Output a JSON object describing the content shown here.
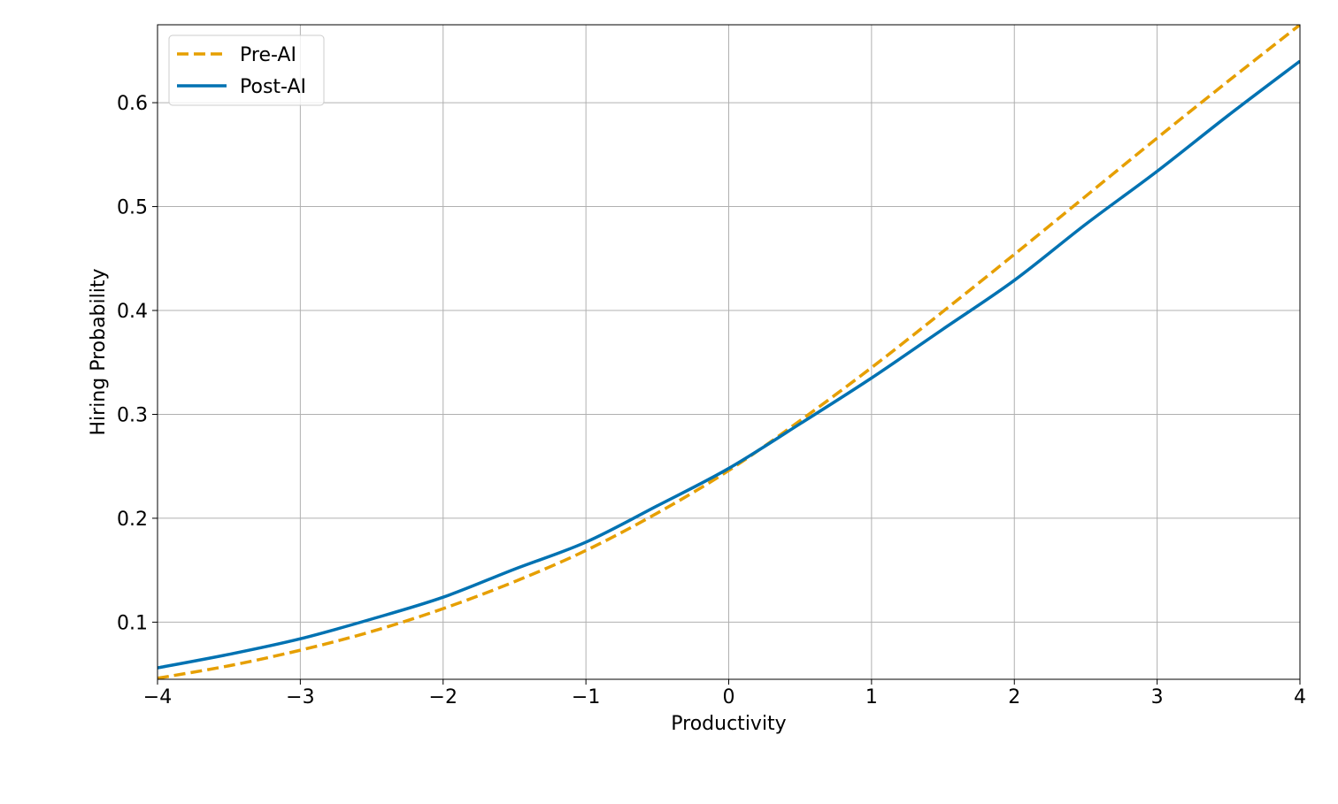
{
  "chart_data": {
    "type": "line",
    "xlabel": "Productivity",
    "ylabel": "Hiring Probability",
    "xlim": [
      -4,
      4
    ],
    "ylim": [
      0.045,
      0.675
    ],
    "x_ticks": [
      -4,
      -3,
      -2,
      -1,
      0,
      1,
      2,
      3,
      4
    ],
    "x_tick_labels": [
      "−4",
      "−3",
      "−2",
      "−1",
      "0",
      "1",
      "2",
      "3",
      "4"
    ],
    "y_ticks": [
      0.1,
      0.2,
      0.3,
      0.4,
      0.5,
      0.6
    ],
    "y_tick_labels": [
      "0.1",
      "0.2",
      "0.3",
      "0.4",
      "0.5",
      "0.6"
    ],
    "grid": true,
    "legend_position": "top-left",
    "series": [
      {
        "name": "Pre-AI",
        "color": "#E69F00",
        "style": "dashed",
        "x": [
          -4,
          -3.5,
          -3,
          -2.5,
          -2,
          -1.5,
          -1,
          -0.5,
          0,
          0.5,
          1,
          1.5,
          2,
          2.5,
          3,
          3.5,
          4
        ],
        "y": [
          0.046,
          0.058,
          0.073,
          0.091,
          0.113,
          0.139,
          0.169,
          0.205,
          0.246,
          0.294,
          0.345,
          0.399,
          0.454,
          0.51,
          0.566,
          0.621,
          0.675
        ]
      },
      {
        "name": "Post-AI",
        "color": "#0072B2",
        "style": "solid",
        "x": [
          -4,
          -3.5,
          -3,
          -2.5,
          -2,
          -1.5,
          -1,
          -0.5,
          0,
          0.5,
          1,
          1.5,
          2,
          2.5,
          3,
          3.5,
          4
        ],
        "y": [
          0.056,
          0.069,
          0.084,
          0.103,
          0.124,
          0.151,
          0.177,
          0.212,
          0.248,
          0.291,
          0.335,
          0.382,
          0.429,
          0.483,
          0.534,
          0.588,
          0.64
        ]
      }
    ]
  }
}
